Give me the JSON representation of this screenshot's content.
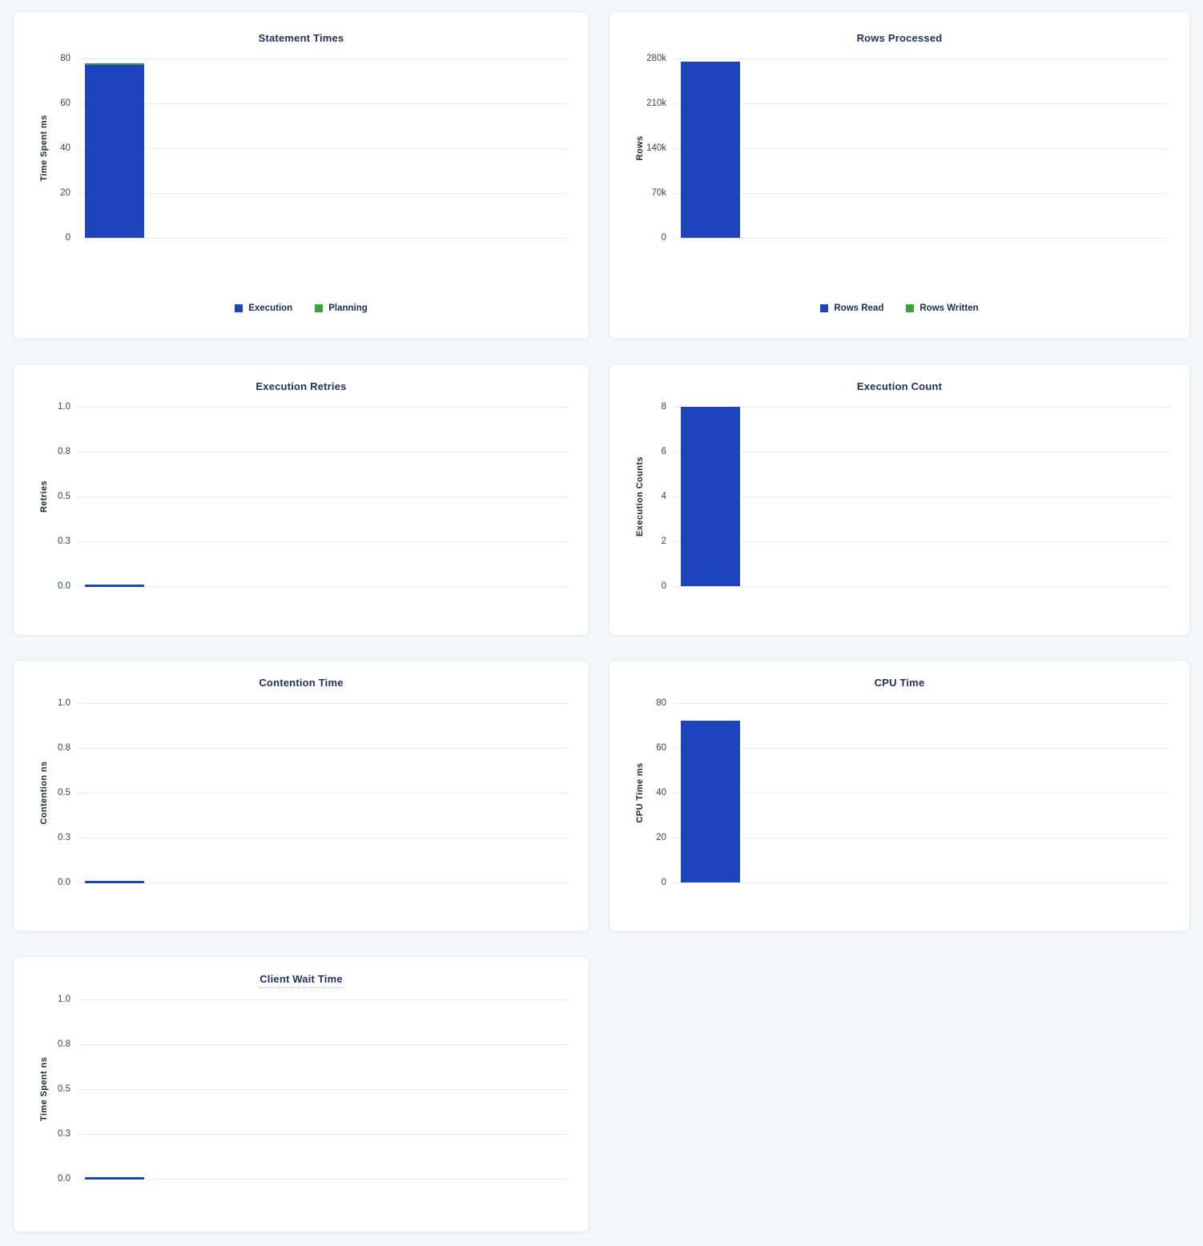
{
  "colors": {
    "blue": "#1d44bd",
    "green": "#3aa33c",
    "title": "#1f3058",
    "grid": "#e9eaec",
    "background": "#f4f6f9"
  },
  "chart_data": [
    {
      "id": "statement-times",
      "type": "bar",
      "stacked": true,
      "title": "Statement Times",
      "xlabel": "",
      "ylabel": "Time Spent ms",
      "categories": [
        ""
      ],
      "series": [
        {
          "name": "Execution",
          "values": [
            77
          ],
          "color": "#1d44bd"
        },
        {
          "name": "Planning",
          "values": [
            1
          ],
          "color": "#3aa33c"
        }
      ],
      "ylim": [
        0,
        80
      ],
      "yticks": [
        0,
        20,
        40,
        60,
        80
      ],
      "ytick_labels": [
        "80",
        "60",
        "40",
        "20",
        "0"
      ],
      "grid": true,
      "legend_position": "bottom",
      "zero_line": false,
      "title_underline": false
    },
    {
      "id": "rows-processed",
      "type": "bar",
      "stacked": true,
      "title": "Rows Processed",
      "xlabel": "",
      "ylabel": "Rows",
      "categories": [
        ""
      ],
      "series": [
        {
          "name": "Rows Read",
          "values": [
            275000
          ],
          "color": "#1d44bd"
        },
        {
          "name": "Rows Written",
          "values": [
            0
          ],
          "color": "#3aa33c"
        }
      ],
      "ylim": [
        0,
        280000
      ],
      "yticks": [
        0,
        70000,
        140000,
        210000,
        280000
      ],
      "ytick_labels": [
        "280k",
        "210k",
        "140k",
        "70k",
        "0"
      ],
      "grid": true,
      "legend_position": "bottom",
      "zero_line": false,
      "title_underline": false
    },
    {
      "id": "execution-retries",
      "type": "bar",
      "stacked": false,
      "title": "Execution Retries",
      "xlabel": "",
      "ylabel": "Retries",
      "categories": [
        ""
      ],
      "series": [
        {
          "name": "Retries",
          "values": [
            0
          ],
          "color": "#1d44bd"
        }
      ],
      "ylim": [
        0,
        1
      ],
      "yticks": [
        0,
        0.25,
        0.5,
        0.75,
        1.0
      ],
      "ytick_labels": [
        "1.0",
        "0.8",
        "0.5",
        "0.3",
        "0.0"
      ],
      "grid": true,
      "legend_position": "none",
      "zero_line": true,
      "title_underline": false
    },
    {
      "id": "execution-count",
      "type": "bar",
      "stacked": false,
      "title": "Execution Count",
      "xlabel": "",
      "ylabel": "Execution Counts",
      "categories": [
        ""
      ],
      "series": [
        {
          "name": "Execution Count",
          "values": [
            8
          ],
          "color": "#1d44bd"
        }
      ],
      "ylim": [
        0,
        8
      ],
      "yticks": [
        0,
        2,
        4,
        6,
        8
      ],
      "ytick_labels": [
        "8",
        "6",
        "4",
        "2",
        "0"
      ],
      "grid": true,
      "legend_position": "none",
      "zero_line": false,
      "title_underline": false
    },
    {
      "id": "contention-time",
      "type": "bar",
      "stacked": false,
      "title": "Contention Time",
      "xlabel": "",
      "ylabel": "Contention ns",
      "categories": [
        ""
      ],
      "series": [
        {
          "name": "Contention",
          "values": [
            0
          ],
          "color": "#1d44bd"
        }
      ],
      "ylim": [
        0,
        1
      ],
      "yticks": [
        0,
        0.25,
        0.5,
        0.75,
        1.0
      ],
      "ytick_labels": [
        "1.0",
        "0.8",
        "0.5",
        "0.3",
        "0.0"
      ],
      "grid": true,
      "legend_position": "none",
      "zero_line": true,
      "title_underline": false
    },
    {
      "id": "cpu-time",
      "type": "bar",
      "stacked": false,
      "title": "CPU Time",
      "xlabel": "",
      "ylabel": "CPU Time ms",
      "categories": [
        ""
      ],
      "series": [
        {
          "name": "CPU Time",
          "values": [
            72
          ],
          "color": "#1d44bd"
        }
      ],
      "ylim": [
        0,
        80
      ],
      "yticks": [
        0,
        20,
        40,
        60,
        80
      ],
      "ytick_labels": [
        "80",
        "60",
        "40",
        "20",
        "0"
      ],
      "grid": true,
      "legend_position": "none",
      "zero_line": false,
      "title_underline": false
    },
    {
      "id": "client-wait-time",
      "type": "bar",
      "stacked": false,
      "title": "Client Wait Time",
      "xlabel": "",
      "ylabel": "Time Spent ns",
      "categories": [
        ""
      ],
      "series": [
        {
          "name": "Client Wait",
          "values": [
            0
          ],
          "color": "#1d44bd"
        }
      ],
      "ylim": [
        0,
        1
      ],
      "yticks": [
        0,
        0.25,
        0.5,
        0.75,
        1.0
      ],
      "ytick_labels": [
        "1.0",
        "0.8",
        "0.5",
        "0.3",
        "0.0"
      ],
      "grid": true,
      "legend_position": "none",
      "zero_line": true,
      "title_underline": true
    }
  ]
}
